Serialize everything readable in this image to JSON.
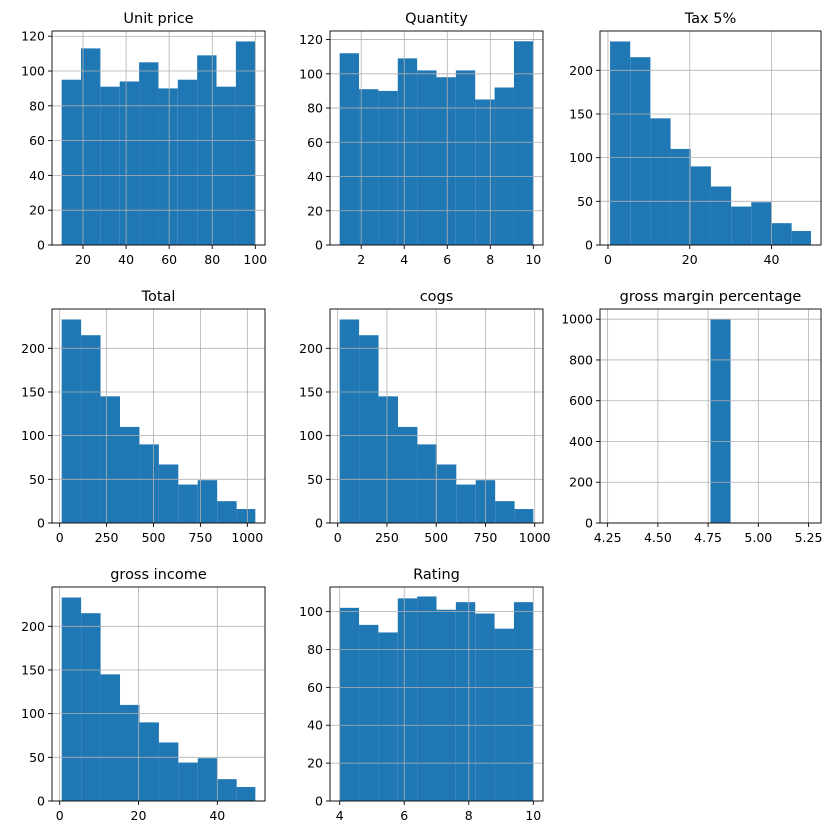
{
  "colors": {
    "bar": "#1f77b4",
    "grid": "#b0b0b0",
    "axis": "#000000"
  },
  "chart_data": [
    {
      "type": "bar",
      "title": "Unit price",
      "bin_edges": [
        10.08,
        19.07,
        28.06,
        37.05,
        46.04,
        55.03,
        64.01,
        73.0,
        81.99,
        90.98,
        99.96
      ],
      "values": [
        95,
        113,
        91,
        94,
        105,
        90,
        95,
        109,
        91,
        117
      ],
      "xlim": [
        5.6,
        104.5
      ],
      "ylim": [
        0,
        123
      ],
      "xticks": [
        20,
        40,
        60,
        80,
        100
      ],
      "xtick_labels": [
        "20",
        "40",
        "60",
        "80",
        "100"
      ],
      "yticks": [
        0,
        20,
        40,
        60,
        80,
        100,
        120
      ],
      "ytick_labels": [
        "0",
        "20",
        "40",
        "60",
        "80",
        "100",
        "120"
      ],
      "grid": true
    },
    {
      "type": "bar",
      "title": "Quantity",
      "bin_edges": [
        1.0,
        1.9,
        2.8,
        3.7,
        4.6,
        5.5,
        6.4,
        7.3,
        8.2,
        9.1,
        10.0
      ],
      "values": [
        112,
        91,
        90,
        109,
        102,
        98,
        102,
        85,
        92,
        119
      ],
      "xlim": [
        0.55,
        10.45
      ],
      "ylim": [
        0,
        125
      ],
      "xticks": [
        2,
        4,
        6,
        8,
        10
      ],
      "xtick_labels": [
        "2",
        "4",
        "6",
        "8",
        "10"
      ],
      "yticks": [
        0,
        20,
        40,
        60,
        80,
        100,
        120
      ],
      "ytick_labels": [
        "0",
        "20",
        "40",
        "60",
        "80",
        "100",
        "120"
      ],
      "grid": true
    },
    {
      "type": "bar",
      "title": "Tax 5%",
      "bin_edges": [
        0.51,
        5.44,
        10.38,
        15.31,
        20.25,
        25.18,
        30.12,
        35.05,
        39.99,
        44.92,
        49.65
      ],
      "values": [
        233,
        215,
        145,
        110,
        90,
        67,
        44,
        49,
        25,
        16
      ],
      "xlim": [
        -1.95,
        52.1
      ],
      "ylim": [
        0,
        245
      ],
      "xticks": [
        0,
        20,
        40
      ],
      "xtick_labels": [
        "0",
        "20",
        "40"
      ],
      "yticks": [
        0,
        50,
        100,
        150,
        200
      ],
      "ytick_labels": [
        "0",
        "50",
        "100",
        "150",
        "200"
      ],
      "grid": true
    },
    {
      "type": "bar",
      "title": "Total",
      "bin_edges": [
        10.68,
        114.26,
        217.84,
        321.42,
        425.0,
        528.58,
        632.16,
        735.74,
        839.32,
        942.9,
        1042.65
      ],
      "values": [
        233,
        215,
        145,
        110,
        90,
        67,
        44,
        49,
        25,
        16
      ],
      "xlim": [
        -40.9,
        1094.2
      ],
      "ylim": [
        0,
        245
      ],
      "xticks": [
        0,
        250,
        500,
        750,
        1000
      ],
      "xtick_labels": [
        "0",
        "250",
        "500",
        "750",
        "1000"
      ],
      "yticks": [
        0,
        50,
        100,
        150,
        200
      ],
      "ytick_labels": [
        "0",
        "50",
        "100",
        "150",
        "200"
      ],
      "grid": true
    },
    {
      "type": "bar",
      "title": "cogs",
      "bin_edges": [
        10.17,
        108.82,
        207.47,
        306.12,
        404.77,
        503.42,
        602.07,
        700.72,
        799.37,
        898.02,
        993.0
      ],
      "values": [
        233,
        215,
        145,
        110,
        90,
        67,
        44,
        49,
        25,
        16
      ],
      "xlim": [
        -38.9,
        1042.1
      ],
      "ylim": [
        0,
        245
      ],
      "xticks": [
        0,
        250,
        500,
        750,
        1000
      ],
      "xtick_labels": [
        "0",
        "250",
        "500",
        "750",
        "1000"
      ],
      "yticks": [
        0,
        50,
        100,
        150,
        200
      ],
      "ytick_labels": [
        "0",
        "50",
        "100",
        "150",
        "200"
      ],
      "grid": true
    },
    {
      "type": "bar",
      "title": "gross margin percentage",
      "bin_edges": [
        4.2619,
        4.3619,
        4.4619,
        4.5619,
        4.6619,
        4.7619,
        4.8619,
        4.9619,
        5.0619,
        5.1619,
        5.2619
      ],
      "values": [
        0,
        0,
        0,
        0,
        0,
        1000,
        0,
        0,
        0,
        0
      ],
      "xlim": [
        4.212,
        5.312
      ],
      "ylim": [
        0,
        1050
      ],
      "xticks": [
        4.25,
        4.5,
        4.75,
        5.0,
        5.25
      ],
      "xtick_labels": [
        "4.25",
        "4.50",
        "4.75",
        "5.00",
        "5.25"
      ],
      "yticks": [
        0,
        200,
        400,
        600,
        800,
        1000
      ],
      "ytick_labels": [
        "0",
        "200",
        "400",
        "600",
        "800",
        "1000"
      ],
      "grid": true
    },
    {
      "type": "bar",
      "title": "gross income",
      "bin_edges": [
        0.51,
        5.44,
        10.38,
        15.31,
        20.25,
        25.18,
        30.12,
        35.05,
        39.99,
        44.92,
        49.65
      ],
      "values": [
        233,
        215,
        145,
        110,
        90,
        67,
        44,
        49,
        25,
        16
      ],
      "xlim": [
        -1.95,
        52.1
      ],
      "ylim": [
        0,
        245
      ],
      "xticks": [
        0,
        20,
        40
      ],
      "xtick_labels": [
        "0",
        "20",
        "40"
      ],
      "yticks": [
        0,
        50,
        100,
        150,
        200
      ],
      "ytick_labels": [
        "0",
        "50",
        "100",
        "150",
        "200"
      ],
      "grid": true
    },
    {
      "type": "bar",
      "title": "Rating",
      "bin_edges": [
        4.0,
        4.6,
        5.2,
        5.8,
        6.4,
        7.0,
        7.6,
        8.2,
        8.8,
        9.4,
        10.0
      ],
      "values": [
        102,
        93,
        89,
        107,
        108,
        101,
        105,
        99,
        91,
        105
      ],
      "xlim": [
        3.7,
        10.3
      ],
      "ylim": [
        0,
        113
      ],
      "xticks": [
        4,
        6,
        8,
        10
      ],
      "xtick_labels": [
        "4",
        "6",
        "8",
        "10"
      ],
      "yticks": [
        0,
        20,
        40,
        60,
        80,
        100
      ],
      "ytick_labels": [
        "0",
        "20",
        "40",
        "60",
        "80",
        "100"
      ],
      "grid": true
    }
  ]
}
